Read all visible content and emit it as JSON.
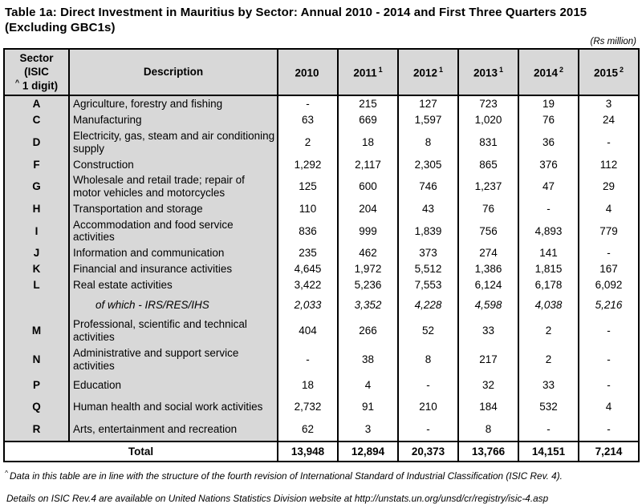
{
  "title_line1": "Table 1a: Direct Investment in Mauritius by Sector: Annual 2010 - 2014 and First Three Quarters 2015",
  "title_line2": "(Excluding GBC1s)",
  "unit_label": "(Rs million)",
  "colors": {
    "cell_gray": "#d8d8d8",
    "border": "#000000",
    "text": "#000000",
    "background": "#ffffff"
  },
  "table": {
    "header": {
      "sector_line1": "Sector (ISIC",
      "sector_sup": "^",
      "sector_line2": " 1 digit)",
      "description": "Description",
      "years": [
        {
          "label": "2010",
          "sup": ""
        },
        {
          "label": "2011",
          "sup": "1"
        },
        {
          "label": "2012",
          "sup": "1"
        },
        {
          "label": "2013",
          "sup": "1"
        },
        {
          "label": "2014",
          "sup": "2"
        },
        {
          "label": "2015",
          "sup": "2"
        }
      ]
    },
    "rows": [
      {
        "sector": "A",
        "description": "Agriculture, forestry and fishing",
        "italic": false,
        "values": [
          "-",
          "215",
          "127",
          "723",
          "19",
          "3"
        ]
      },
      {
        "sector": "C",
        "description": "Manufacturing",
        "italic": false,
        "values": [
          "63",
          "669",
          "1,597",
          "1,020",
          "76",
          "24"
        ]
      },
      {
        "sector": "D",
        "description": "Electricity, gas, steam and air conditioning supply",
        "italic": false,
        "values": [
          "2",
          "18",
          "8",
          "831",
          "36",
          "-"
        ]
      },
      {
        "sector": "F",
        "description": "Construction",
        "italic": false,
        "values": [
          "1,292",
          "2,117",
          "2,305",
          "865",
          "376",
          "112"
        ]
      },
      {
        "sector": "G",
        "description": "Wholesale and retail trade; repair of motor vehicles and motorcycles",
        "italic": false,
        "values": [
          "125",
          "600",
          "746",
          "1,237",
          "47",
          "29"
        ]
      },
      {
        "sector": "H",
        "description": "Transportation and storage",
        "italic": false,
        "values": [
          "110",
          "204",
          "43",
          "76",
          "-",
          "4"
        ]
      },
      {
        "sector": "I",
        "description": "Accommodation and food service activities",
        "italic": false,
        "values": [
          "836",
          "999",
          "1,839",
          "756",
          "4,893",
          "779"
        ]
      },
      {
        "sector": "J",
        "description": "Information and communication",
        "italic": false,
        "values": [
          "235",
          "462",
          "373",
          "274",
          "141",
          "-"
        ]
      },
      {
        "sector": "K",
        "description": "Financial and insurance activities",
        "italic": false,
        "values": [
          "4,645",
          "1,972",
          "5,512",
          "1,386",
          "1,815",
          "167"
        ]
      },
      {
        "sector": "L",
        "description": "Real estate activities",
        "italic": false,
        "values": [
          "3,422",
          "5,236",
          "7,553",
          "6,124",
          "6,178",
          "6,092"
        ]
      },
      {
        "sector": "",
        "description": "of which - IRS/RES/IHS",
        "italic": true,
        "values": [
          "2,033",
          "3,352",
          "4,228",
          "4,598",
          "4,038",
          "5,216"
        ]
      },
      {
        "sector": "M",
        "description": "Professional, scientific and technical activities",
        "italic": false,
        "values": [
          "404",
          "266",
          "52",
          "33",
          "2",
          "-"
        ]
      },
      {
        "sector": "N",
        "description": "Administrative and support service activities",
        "italic": false,
        "values": [
          "-",
          "38",
          "8",
          "217",
          "2",
          "-"
        ]
      },
      {
        "sector": "P",
        "description": "Education",
        "italic": false,
        "values": [
          "18",
          "4",
          "-",
          "32",
          "33",
          "-"
        ]
      },
      {
        "sector": "Q",
        "description": "Human health and social work activities",
        "italic": false,
        "values": [
          "2,732",
          "91",
          "210",
          "184",
          "532",
          "4"
        ]
      },
      {
        "sector": "R",
        "description": "Arts, entertainment and recreation",
        "italic": false,
        "values": [
          "62",
          "3",
          "-",
          "8",
          "-",
          "-"
        ]
      }
    ],
    "total": {
      "label": "Total",
      "values": [
        "13,948",
        "12,894",
        "20,373",
        "13,766",
        "14,151",
        "7,214"
      ]
    }
  },
  "footnotes": [
    {
      "sup": "^",
      "text": "Data in this table are in line with the structure of the fourth revision of International Standard of Industrial Classification (ISIC Rev. 4)."
    },
    {
      "sup": "",
      "text": "Details on ISIC Rev.4 are available on United Nations Statistics Division website at http://unstats.un.org/unsd/cr/registry/isic-4.asp"
    }
  ]
}
